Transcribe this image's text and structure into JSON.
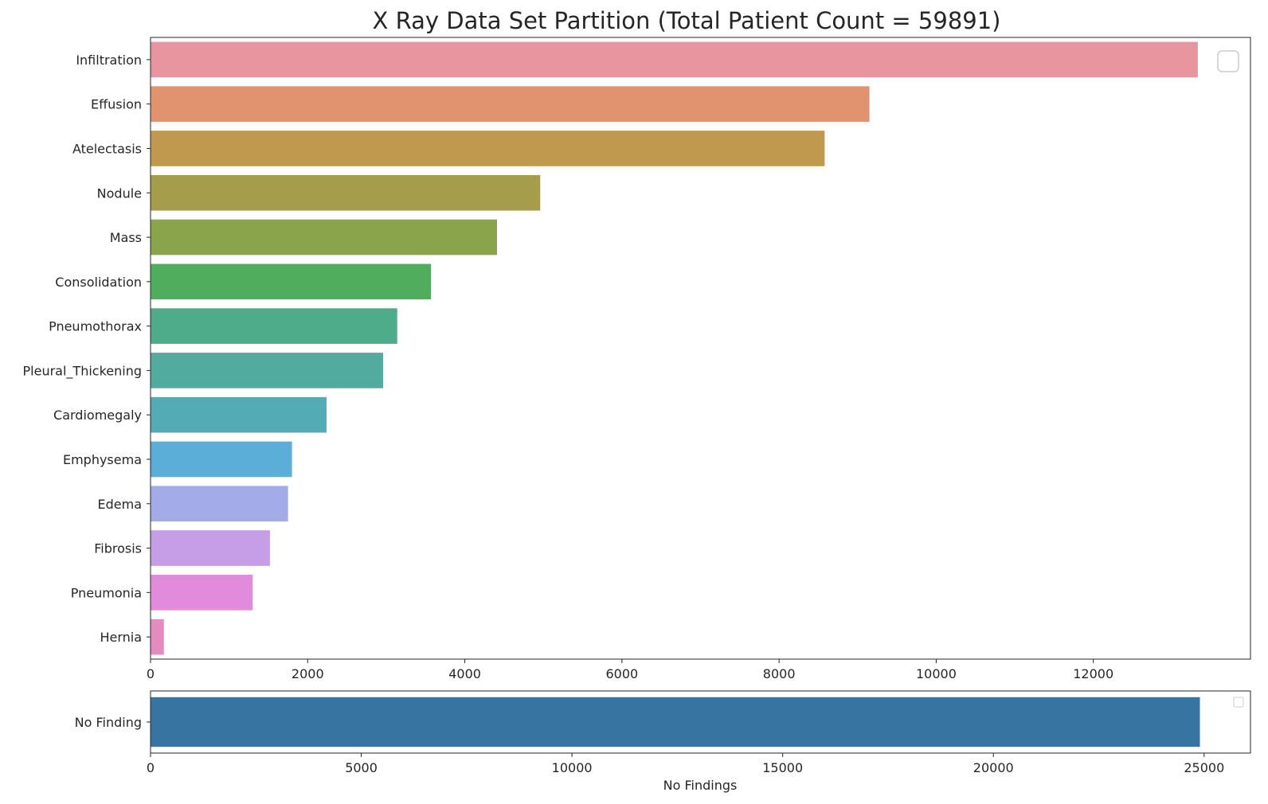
{
  "chart_data": [
    {
      "type": "bar",
      "orientation": "horizontal",
      "title": "X Ray Data Set Partition (Total Patient Count = 59891)",
      "xlabel": "",
      "ylabel": "",
      "xlim": [
        0,
        14000
      ],
      "xticks": [
        0,
        2000,
        4000,
        6000,
        8000,
        10000,
        12000
      ],
      "xtick_labels": [
        "0",
        "2000",
        "4000",
        "6000",
        "8000",
        "10000",
        "12000"
      ],
      "categories": [
        "Infiltration",
        "Effusion",
        "Atelectasis",
        "Nodule",
        "Mass",
        "Consolidation",
        "Pneumothorax",
        "Pleural_Thickening",
        "Cardiomegaly",
        "Emphysema",
        "Edema",
        "Fibrosis",
        "Pneumonia",
        "Hernia"
      ],
      "values": [
        13330,
        9150,
        8580,
        4960,
        4410,
        3570,
        3140,
        2960,
        2240,
        1800,
        1750,
        1520,
        1300,
        170
      ],
      "colors": [
        "#e9959f",
        "#e1936f",
        "#c0994f",
        "#a59d4b",
        "#89a44b",
        "#4eae5d",
        "#4fac8a",
        "#51ab9f",
        "#53abb6",
        "#5aaed8",
        "#a4ace8",
        "#c69de7",
        "#e28bdd",
        "#e68bbf"
      ],
      "grid": false,
      "legend": "top-right (empty)"
    },
    {
      "type": "bar",
      "orientation": "horizontal",
      "title": "",
      "xlabel": "No Findings",
      "ylabel": "",
      "xlim": [
        0,
        26100
      ],
      "xticks": [
        0,
        5000,
        10000,
        15000,
        20000,
        25000
      ],
      "xtick_labels": [
        "0",
        "5000",
        "10000",
        "15000",
        "20000",
        "25000"
      ],
      "categories": [
        "No Finding"
      ],
      "values": [
        24900
      ],
      "colors": [
        "#3874a1"
      ],
      "grid": false,
      "legend": "top-right (empty)"
    }
  ]
}
